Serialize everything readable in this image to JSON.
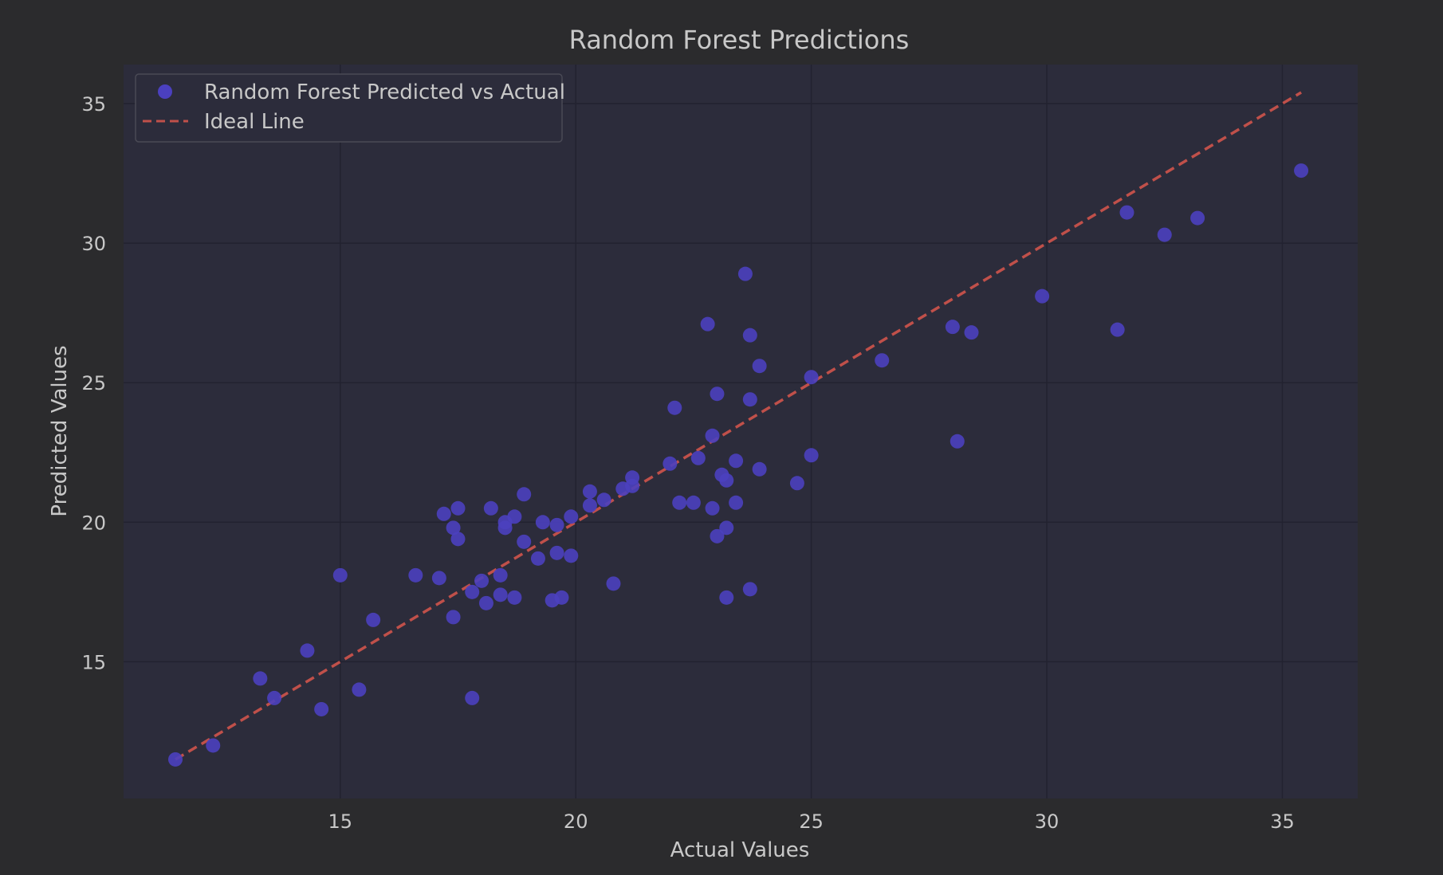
{
  "chart_data": {
    "type": "scatter",
    "title": "Random Forest Predictions",
    "xlabel": "Actual Values",
    "ylabel": "Predicted Values",
    "xlim": [
      10.4,
      36.6
    ],
    "ylim": [
      10.1,
      36.4
    ],
    "xticks": [
      15,
      20,
      25,
      30,
      35
    ],
    "yticks": [
      15,
      20,
      25,
      30,
      35
    ],
    "grid": true,
    "legend_position": "top-left",
    "colors": {
      "background": "#2b2b2d",
      "plot_area": "#2c2c3b",
      "points": "#4b40bf",
      "ideal_line": "#c0504a",
      "grid": "#222230",
      "text": "#c8c8c8"
    },
    "series": [
      {
        "name": "Random Forest Predicted vs Actual",
        "kind": "scatter",
        "points": [
          [
            11.5,
            11.5
          ],
          [
            12.3,
            12.0
          ],
          [
            13.3,
            14.4
          ],
          [
            13.6,
            13.7
          ],
          [
            14.3,
            15.4
          ],
          [
            14.6,
            13.3
          ],
          [
            15.0,
            18.1
          ],
          [
            15.4,
            14.0
          ],
          [
            15.7,
            16.5
          ],
          [
            16.6,
            18.1
          ],
          [
            17.1,
            18.0
          ],
          [
            17.2,
            20.3
          ],
          [
            17.4,
            16.6
          ],
          [
            17.4,
            19.8
          ],
          [
            17.5,
            19.4
          ],
          [
            17.5,
            20.5
          ],
          [
            17.8,
            17.5
          ],
          [
            17.8,
            13.7
          ],
          [
            18.0,
            17.9
          ],
          [
            18.1,
            17.1
          ],
          [
            18.2,
            20.5
          ],
          [
            18.4,
            18.1
          ],
          [
            18.4,
            17.4
          ],
          [
            18.5,
            19.8
          ],
          [
            18.5,
            20.0
          ],
          [
            18.7,
            20.2
          ],
          [
            18.7,
            17.3
          ],
          [
            18.9,
            21.0
          ],
          [
            18.9,
            19.3
          ],
          [
            19.2,
            18.7
          ],
          [
            19.3,
            20.0
          ],
          [
            19.5,
            17.2
          ],
          [
            19.6,
            19.9
          ],
          [
            19.6,
            18.9
          ],
          [
            19.7,
            17.3
          ],
          [
            19.9,
            18.8
          ],
          [
            19.9,
            20.2
          ],
          [
            20.3,
            21.1
          ],
          [
            20.3,
            20.6
          ],
          [
            20.6,
            20.8
          ],
          [
            20.8,
            17.8
          ],
          [
            21.0,
            21.2
          ],
          [
            21.2,
            21.6
          ],
          [
            21.2,
            21.3
          ],
          [
            22.0,
            22.1
          ],
          [
            22.1,
            24.1
          ],
          [
            22.2,
            20.7
          ],
          [
            22.5,
            20.7
          ],
          [
            22.6,
            22.3
          ],
          [
            22.8,
            27.1
          ],
          [
            22.9,
            23.1
          ],
          [
            22.9,
            20.5
          ],
          [
            23.0,
            24.6
          ],
          [
            23.0,
            19.5
          ],
          [
            23.1,
            21.7
          ],
          [
            23.2,
            21.5
          ],
          [
            23.2,
            19.8
          ],
          [
            23.2,
            17.3
          ],
          [
            23.4,
            22.2
          ],
          [
            23.4,
            20.7
          ],
          [
            23.6,
            28.9
          ],
          [
            23.7,
            26.7
          ],
          [
            23.7,
            24.4
          ],
          [
            23.7,
            17.6
          ],
          [
            23.9,
            25.6
          ],
          [
            23.9,
            21.9
          ],
          [
            24.7,
            21.4
          ],
          [
            25.0,
            25.2
          ],
          [
            25.0,
            22.4
          ],
          [
            26.5,
            25.8
          ],
          [
            28.0,
            27.0
          ],
          [
            28.1,
            22.9
          ],
          [
            28.4,
            26.8
          ],
          [
            29.9,
            28.1
          ],
          [
            31.5,
            26.9
          ],
          [
            31.7,
            31.1
          ],
          [
            32.5,
            30.3
          ],
          [
            33.2,
            30.9
          ],
          [
            35.4,
            32.6
          ]
        ]
      },
      {
        "name": "Ideal Line",
        "kind": "line",
        "dashed": true,
        "x": [
          11.5,
          35.4
        ],
        "y": [
          11.5,
          35.4
        ]
      }
    ]
  }
}
